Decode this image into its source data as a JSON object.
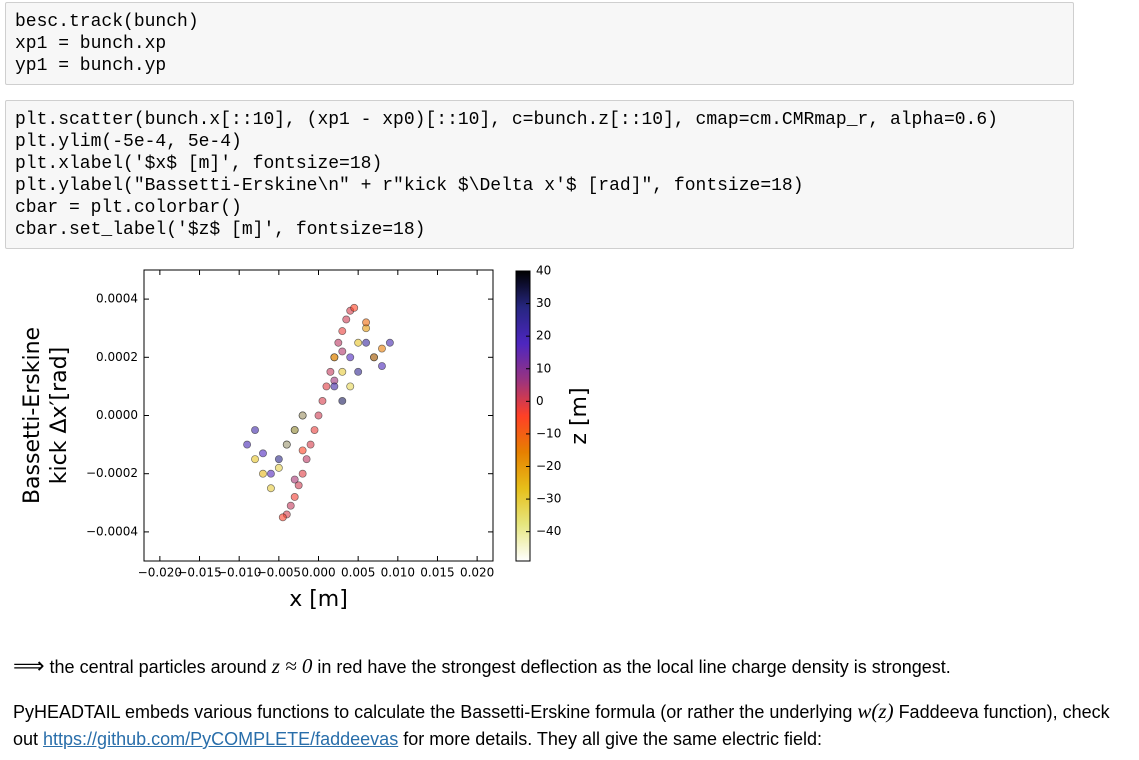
{
  "cells": [
    {
      "code": [
        "besc.track(bunch)",
        "xp1 = bunch.xp",
        "yp1 = bunch.yp"
      ]
    },
    {
      "code": [
        "plt.scatter(bunch.x[::10], (xp1 - xp0)[::10], c=bunch.z[::10], cmap=cm.CMRmap_r, alpha=0.6)",
        "plt.ylim(-5e-4, 5e-4)",
        "plt.xlabel('$x$ [m]', fontsize=18)",
        "plt.ylabel(\"Bassetti-Erskine\\n\" + r\"kick $\\Delta x'$ [rad]\", fontsize=18)",
        "cbar = plt.colorbar()",
        "cbar.set_label('$z$ [m]', fontsize=18)"
      ]
    }
  ],
  "figure": {
    "type": "scatter",
    "xlabel": "x [m]",
    "ylabel": [
      "Bassetti-Erskine",
      "kick Δx′[rad]"
    ],
    "xlim": [
      -0.022,
      0.022
    ],
    "ylim": [
      -0.0005,
      0.0005
    ],
    "xticks": [
      {
        "value": -0.02,
        "label": "−0.020"
      },
      {
        "value": -0.015,
        "label": "−0.015"
      },
      {
        "value": -0.01,
        "label": "−0.010"
      },
      {
        "value": -0.005,
        "label": "−0.005"
      },
      {
        "value": 0,
        "label": "0.000"
      },
      0.005,
      {
        "value": 0.01,
        "label": "0.010"
      },
      0.015,
      {
        "value": 0.02,
        "label": "0.020"
      }
    ],
    "yticks": [
      0.0004,
      0.0002,
      {
        "value": 0,
        "label": "0.0000"
      },
      {
        "value": -0.0002,
        "label": "−0.0002"
      },
      {
        "value": -0.0004,
        "label": "−0.0004"
      }
    ],
    "alpha": 0.6,
    "colorbar": {
      "label": "z [m]",
      "lim": [
        -49,
        40
      ],
      "ticks": [
        40,
        30,
        20,
        10,
        0,
        {
          "value": -10,
          "label": "−10"
        },
        {
          "value": -20,
          "label": "−20"
        },
        {
          "value": -30,
          "label": "−30"
        },
        {
          "value": -40,
          "label": "−40"
        }
      ],
      "colormap": [
        "#ffffff",
        "#e6e680",
        "#e6bf1a",
        "#e68000",
        "#ff4026",
        "#993380",
        "#4d26bf",
        "#262680",
        "#000000"
      ]
    },
    "points": {
      "x": [
        -0.004,
        -0.0035,
        -0.003,
        -0.0025,
        -0.002,
        -0.0015,
        -0.001,
        -0.0005,
        0,
        0.0005,
        0.001,
        0.0015,
        0.002,
        0.0025,
        0.003,
        0.0035,
        0.004,
        -0.0045,
        0.0045,
        -0.003,
        0.003,
        -0.002,
        0.002,
        -0.009,
        -0.008,
        -0.007,
        -0.006,
        -0.004,
        -0.002,
        0.002,
        0.004,
        0.006,
        0.007,
        0.008,
        0.009,
        -0.005,
        0.005,
        -0.003,
        0.003,
        -0.008,
        -0.007,
        -0.006,
        -0.005,
        -0.003,
        -0.002,
        0.002,
        0.003,
        0.005,
        0.006,
        0.007,
        -0.004,
        0.004,
        0.006,
        0.008
      ],
      "y": [
        -0.00034,
        -0.00031,
        -0.00028,
        -0.00024,
        -0.0002,
        -0.00015,
        -0.0001,
        -5e-05,
        0,
        5e-05,
        0.0001,
        0.00015,
        0.0002,
        0.00025,
        0.00029,
        0.00033,
        0.00036,
        -0.00035,
        0.00037,
        -0.00022,
        0.00022,
        -0.00012,
        0.00012,
        -0.0001,
        -5e-05,
        -0.00013,
        -0.0002,
        -0.0001,
        0,
        0.0001,
        0.0002,
        0.00025,
        0.0002,
        0.00017,
        0.00025,
        -0.00015,
        0.00015,
        -5e-05,
        5e-05,
        -0.00015,
        -0.0002,
        -0.00025,
        -0.00018,
        -5e-05,
        0,
        0.0002,
        0.00015,
        0.00025,
        0.0003,
        0.0002,
        -0.0001,
        0.0001,
        0.00032,
        0.00023
      ],
      "z": [
        0,
        2,
        -3,
        1,
        -1,
        3,
        0,
        -2,
        1,
        0,
        -1,
        2,
        0,
        3,
        -2,
        1,
        0,
        -4,
        -5,
        5,
        4,
        -5,
        6,
        20,
        22,
        18,
        17,
        25,
        20,
        22,
        18,
        24,
        20,
        19,
        21,
        28,
        26,
        30,
        32,
        -28,
        -25,
        -30,
        -32,
        -35,
        -38,
        -25,
        -30,
        -28,
        -20,
        -22,
        -40,
        -33,
        -12,
        -15
      ]
    }
  },
  "text": {
    "p1": [
      "⟹",
      " the central particles around ",
      "z ≈ 0",
      " in red have the strongest deflection as the local line charge density is strongest."
    ],
    "p2": [
      "PyHEADTAIL embeds various functions to calculate the Bassetti-Erskine formula (or rather the underlying ",
      "w(z)",
      " Faddeeva function), check out ",
      "https://github.com/PyCOMPLETE/faddeevas",
      " for more details. They all give the same electric field:"
    ]
  }
}
